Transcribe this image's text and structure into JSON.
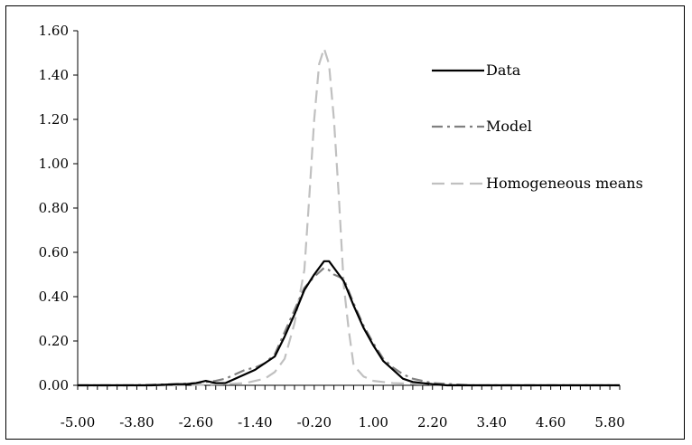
{
  "chart_data": {
    "type": "line",
    "title": "",
    "xlabel": "",
    "ylabel": "",
    "xlim": [
      -5.0,
      6.0
    ],
    "ylim": [
      0.0,
      1.6
    ],
    "y_ticks": [
      "0.00",
      "0.20",
      "0.40",
      "0.60",
      "0.80",
      "1.00",
      "1.20",
      "1.40",
      "1.60"
    ],
    "x_ticks": [
      "-5.00",
      "-3.80",
      "-2.60",
      "-1.40",
      "-0.20",
      "1.00",
      "2.20",
      "3.40",
      "4.60",
      "5.80"
    ],
    "grid": false,
    "legend_position": "right",
    "series": [
      {
        "name": "Data",
        "color": "#000000",
        "style": "solid",
        "x": [
          -5.0,
          -4.0,
          -3.5,
          -3.0,
          -2.8,
          -2.6,
          -2.4,
          -2.2,
          -2.0,
          -1.8,
          -1.6,
          -1.4,
          -1.2,
          -1.0,
          -0.8,
          -0.6,
          -0.4,
          -0.2,
          0.0,
          0.1,
          0.2,
          0.4,
          0.6,
          0.8,
          1.0,
          1.2,
          1.4,
          1.6,
          1.8,
          2.0,
          2.2,
          2.5,
          3.0,
          4.0,
          5.0,
          6.0
        ],
        "values": [
          0.0,
          0.0,
          0.0,
          0.005,
          0.005,
          0.01,
          0.02,
          0.01,
          0.01,
          0.03,
          0.05,
          0.07,
          0.1,
          0.13,
          0.22,
          0.32,
          0.43,
          0.5,
          0.56,
          0.56,
          0.53,
          0.47,
          0.36,
          0.26,
          0.18,
          0.11,
          0.07,
          0.03,
          0.015,
          0.01,
          0.005,
          0.0,
          0.0,
          0.0,
          0.0,
          0.0
        ]
      },
      {
        "name": "Model",
        "color": "#808080",
        "style": "dash-dot",
        "x": [
          -5.0,
          -4.0,
          -3.0,
          -2.6,
          -2.4,
          -2.2,
          -2.0,
          -1.8,
          -1.6,
          -1.4,
          -1.2,
          -1.0,
          -0.8,
          -0.6,
          -0.4,
          -0.2,
          0.0,
          0.1,
          0.2,
          0.4,
          0.6,
          0.8,
          1.0,
          1.2,
          1.4,
          1.6,
          1.8,
          2.0,
          2.2,
          2.6,
          3.0,
          4.0,
          5.0,
          6.0
        ],
        "values": [
          0.0,
          0.0,
          0.005,
          0.01,
          0.015,
          0.02,
          0.03,
          0.05,
          0.07,
          0.08,
          0.1,
          0.14,
          0.24,
          0.34,
          0.44,
          0.49,
          0.53,
          0.52,
          0.5,
          0.48,
          0.37,
          0.27,
          0.19,
          0.12,
          0.08,
          0.05,
          0.03,
          0.02,
          0.01,
          0.005,
          0.0,
          0.0,
          0.0,
          0.0
        ]
      },
      {
        "name": "Homogeneous means",
        "color": "#c0c0c0",
        "style": "dashed",
        "x": [
          -5.0,
          -3.0,
          -2.0,
          -1.6,
          -1.2,
          -1.0,
          -0.8,
          -0.6,
          -0.4,
          -0.3,
          -0.2,
          -0.1,
          0.0,
          0.1,
          0.2,
          0.3,
          0.4,
          0.5,
          0.6,
          0.8,
          1.0,
          1.4,
          2.0,
          3.0,
          6.0
        ],
        "values": [
          0.0,
          0.0,
          0.005,
          0.01,
          0.03,
          0.06,
          0.12,
          0.28,
          0.52,
          0.85,
          1.2,
          1.45,
          1.52,
          1.45,
          1.2,
          0.85,
          0.45,
          0.25,
          0.09,
          0.04,
          0.02,
          0.01,
          0.005,
          0.0,
          0.0
        ]
      }
    ]
  }
}
